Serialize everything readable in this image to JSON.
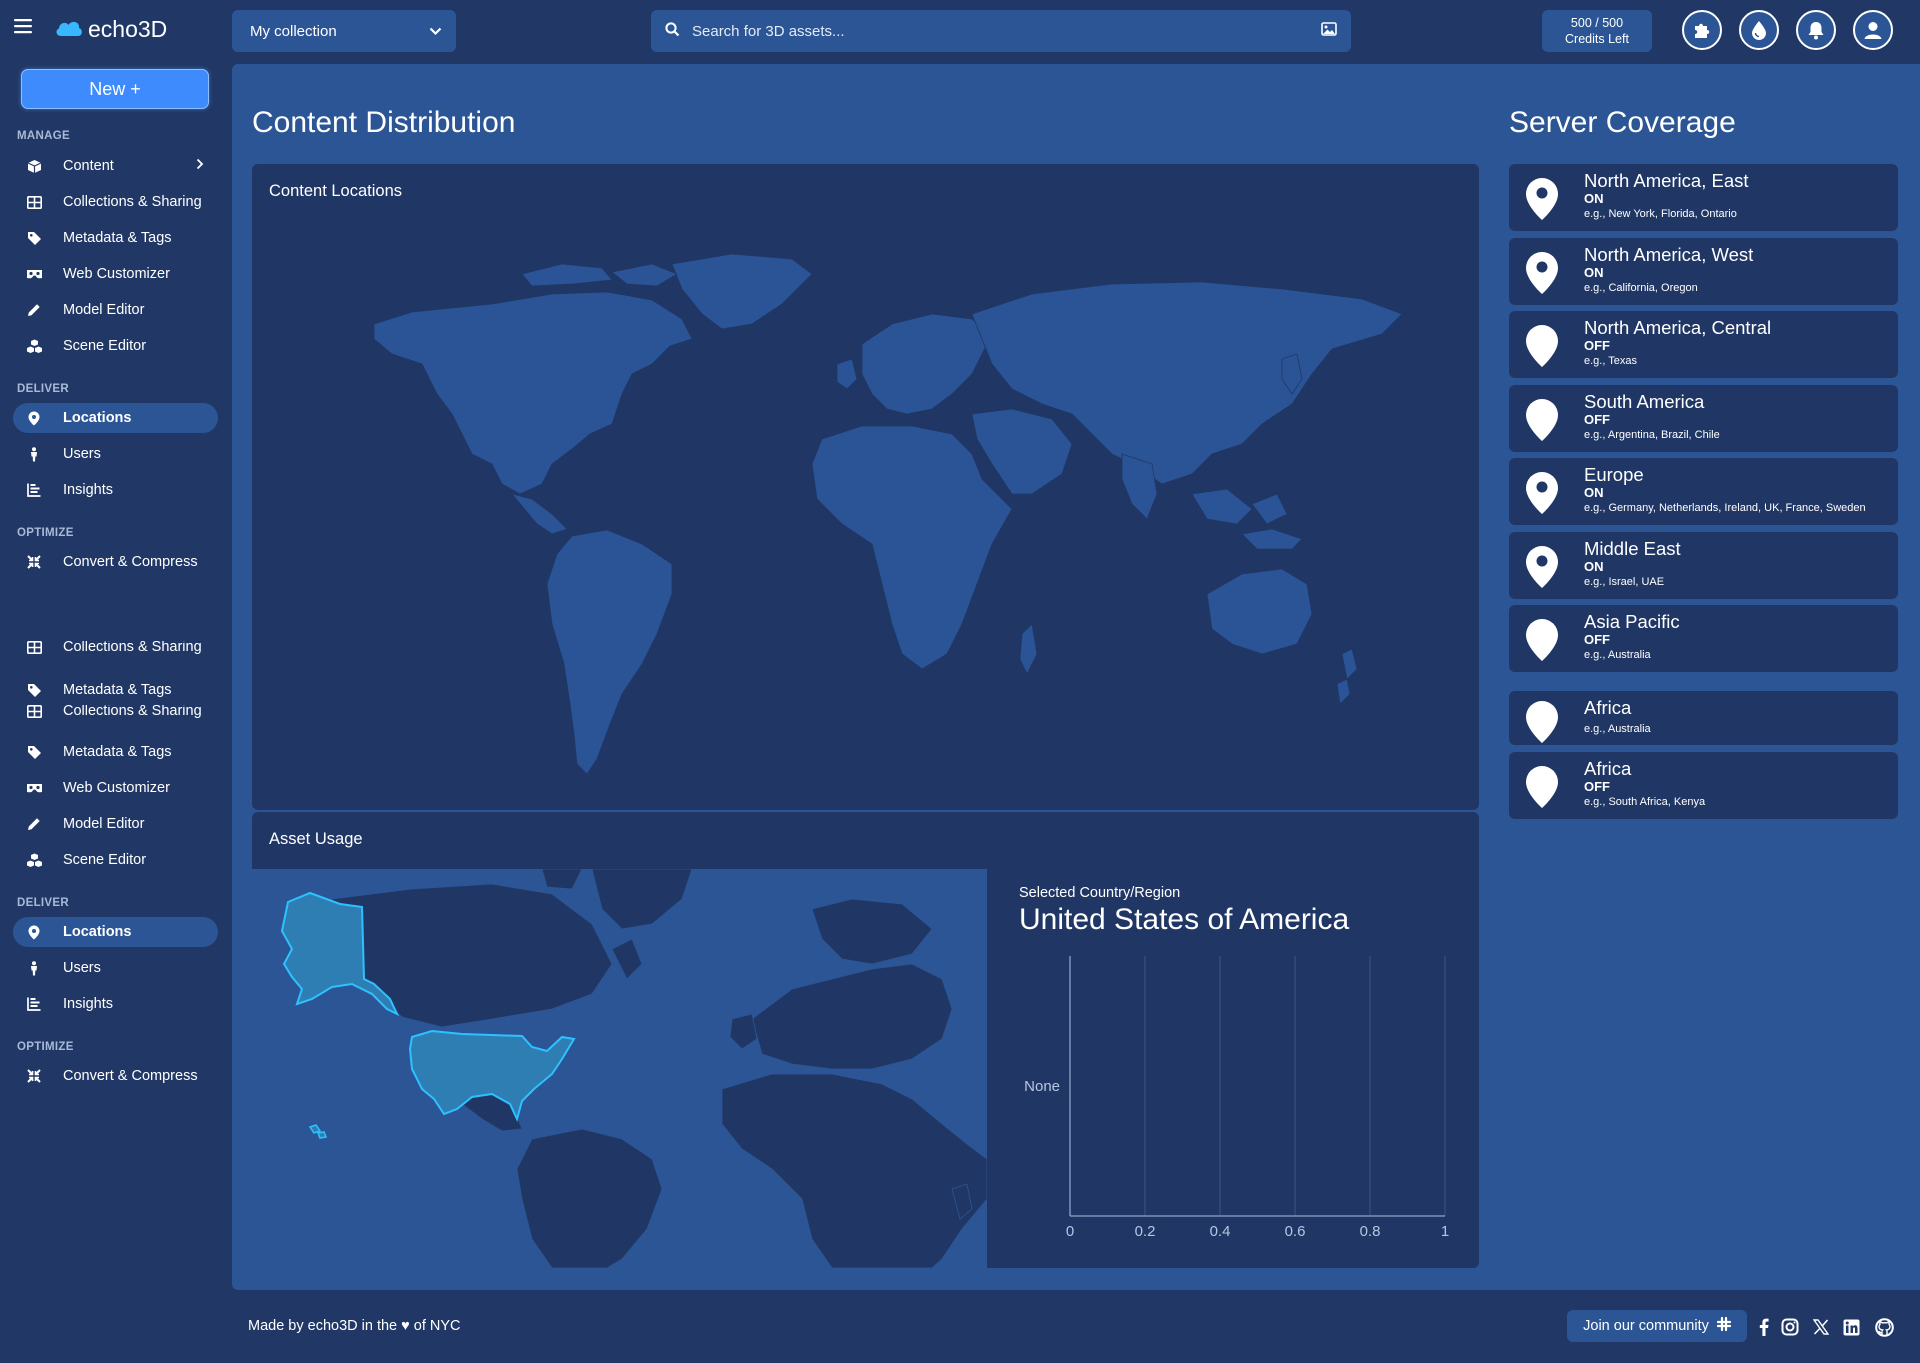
{
  "header": {
    "logo_text": "echo3D",
    "collection": "My collection",
    "search_placeholder": "Search for 3D assets...",
    "credits_value": "500 / 500",
    "credits_label": "Credits Left"
  },
  "sidebar": {
    "new_button": "New +",
    "sections": {
      "manage": "MANAGE",
      "deliver": "DELIVER",
      "optimize": "OPTIMIZE"
    },
    "items": {
      "content": "Content",
      "collections": "Collections & Sharing",
      "metadata": "Metadata & Tags",
      "web_customizer": "Web Customizer",
      "model_editor": "Model Editor",
      "scene_editor": "Scene Editor",
      "locations": "Locations",
      "users": "Users",
      "insights": "Insights",
      "convert": "Convert & Compress"
    }
  },
  "main": {
    "content_distribution_title": "Content Distribution",
    "content_locations_title": "Content Locations",
    "asset_usage_title": "Asset Usage",
    "selected_label": "Selected Country/Region",
    "selected_country": "United States of America",
    "server_coverage_title": "Server Coverage"
  },
  "servers": [
    {
      "name": "North America, East",
      "state": "ON",
      "eg": "e.g., New York, Florida, Ontario"
    },
    {
      "name": "North America, West",
      "state": "ON",
      "eg": "e.g., California, Oregon"
    },
    {
      "name": "North America, Central",
      "state": "OFF",
      "eg": "e.g., Texas"
    },
    {
      "name": "South America",
      "state": "OFF",
      "eg": "e.g., Argentina, Brazil, Chile"
    },
    {
      "name": "Europe",
      "state": "ON",
      "eg": "e.g., Germany, Netherlands, Ireland, UK, France, Sweden"
    },
    {
      "name": "Middle East",
      "state": "ON",
      "eg": "e.g., Israel, UAE"
    },
    {
      "name": "Asia Pacific",
      "state": "OFF",
      "eg": "e.g., Australia"
    },
    {
      "name": "Africa",
      "state": "",
      "eg": "e.g., Australia"
    },
    {
      "name": "Africa",
      "state": "OFF",
      "eg": "e.g., South Africa, Kenya"
    }
  ],
  "chart_data": {
    "type": "bar",
    "categories": [
      "None"
    ],
    "values": [
      0
    ],
    "title": "",
    "xlabel": "",
    "ylabel": "",
    "xlim": [
      0,
      1
    ],
    "xticks": [
      "0",
      "0.2",
      "0.4",
      "0.6",
      "0.8",
      "1"
    ],
    "orientation": "horizontal",
    "grid": true
  },
  "footer": {
    "made_by": "Made by echo3D in the ♥ of NYC",
    "join": "Join our community"
  },
  "colors": {
    "background": "#213866",
    "panel": "#2c5595",
    "card": "#203766",
    "accent": "#3d8bfd",
    "highlight": "#2dc2ff"
  }
}
